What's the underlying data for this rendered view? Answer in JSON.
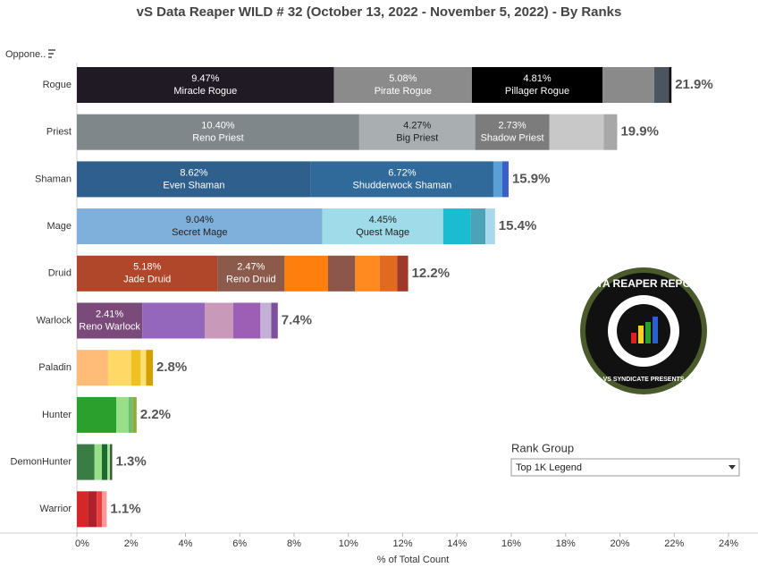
{
  "chart_data": {
    "type": "bar",
    "title": "vS Data Reaper WILD # 32 (October 13, 2022 - November 5, 2022) - By Ranks",
    "filter_label": "Oppone..",
    "xlabel": "% of Total Count",
    "orientation": "horizontal",
    "stacked": true,
    "grid": false,
    "xlim": [
      0,
      24
    ],
    "xticks": [
      {
        "value": 0,
        "label": "0%"
      },
      {
        "value": 2,
        "label": "2%"
      },
      {
        "value": 4,
        "label": "4%"
      },
      {
        "value": 6,
        "label": "6%"
      },
      {
        "value": 8,
        "label": "8%"
      },
      {
        "value": 10,
        "label": "10%"
      },
      {
        "value": 12,
        "label": "12%"
      },
      {
        "value": 14,
        "label": "14%"
      },
      {
        "value": 16,
        "label": "16%"
      },
      {
        "value": 18,
        "label": "18%"
      },
      {
        "value": 20,
        "label": "20%"
      },
      {
        "value": 22,
        "label": "22%"
      },
      {
        "value": 24,
        "label": "24%"
      }
    ],
    "rows": [
      {
        "category": "Rogue",
        "total": 21.9,
        "total_label": "21.9%",
        "segments": [
          {
            "name": "Miracle Rogue",
            "value": 9.47,
            "value_label": "9.47%",
            "color": "#1f1a24"
          },
          {
            "name": "Pirate Rogue",
            "value": 5.08,
            "value_label": "5.08%",
            "color": "#8b8b8b"
          },
          {
            "name": "Pillager Rogue",
            "value": 4.81,
            "value_label": "4.81%",
            "color": "#000000"
          },
          {
            "value": 1.9,
            "color": "#8a8a8a"
          },
          {
            "value": 0.55,
            "color": "#4a5560"
          },
          {
            "value": 0.09,
            "color": "#111111"
          }
        ]
      },
      {
        "category": "Priest",
        "total": 19.9,
        "total_label": "19.9%",
        "segments": [
          {
            "name": "Reno Priest",
            "value": 10.4,
            "value_label": "10.40%",
            "color": "#7f878b"
          },
          {
            "name": "Big Priest",
            "value": 4.27,
            "value_label": "4.27%",
            "color": "#a9aeb0"
          },
          {
            "name": "Shadow Priest",
            "value": 2.73,
            "value_label": "2.73%",
            "color": "#7c7c7c"
          },
          {
            "value": 2.0,
            "color": "#c8c8c8"
          },
          {
            "value": 0.5,
            "color": "#a8a8a8"
          }
        ]
      },
      {
        "category": "Shaman",
        "total": 15.9,
        "total_label": "15.9%",
        "segments": [
          {
            "name": "Even Shaman",
            "value": 8.62,
            "value_label": "8.62%",
            "color": "#2e5f8d"
          },
          {
            "name": "Shudderwock Shaman",
            "value": 6.72,
            "value_label": "6.72%",
            "color": "#2f6a9a"
          },
          {
            "value": 0.33,
            "color": "#5aa0d6"
          },
          {
            "value": 0.23,
            "color": "#3a5fc9"
          }
        ]
      },
      {
        "category": "Mage",
        "total": 15.4,
        "total_label": "15.4%",
        "segments": [
          {
            "name": "Secret Mage",
            "value": 9.04,
            "value_label": "9.04%",
            "color": "#7fb0dc"
          },
          {
            "name": "Quest Mage",
            "value": 4.45,
            "value_label": "4.45%",
            "color": "#9fdbe8"
          },
          {
            "value": 1.0,
            "color": "#1bbcd0"
          },
          {
            "value": 0.56,
            "color": "#4aa3b8"
          },
          {
            "value": 0.35,
            "color": "#a8d8ec"
          }
        ]
      },
      {
        "category": "Druid",
        "total": 12.2,
        "total_label": "12.2%",
        "segments": [
          {
            "name": "Jade Druid",
            "value": 5.18,
            "value_label": "5.18%",
            "color": "#b0472a"
          },
          {
            "name": "Reno Druid",
            "value": 2.47,
            "value_label": "2.47%",
            "color": "#8b5a4a"
          },
          {
            "value": 1.6,
            "color": "#ff7f0e"
          },
          {
            "value": 1.0,
            "color": "#8c564b"
          },
          {
            "value": 0.9,
            "color": "#ff8a1f"
          },
          {
            "value": 0.65,
            "color": "#e06a20"
          },
          {
            "value": 0.4,
            "color": "#9e3a2a"
          }
        ]
      },
      {
        "category": "Warlock",
        "total": 7.4,
        "total_label": "7.4%",
        "segments": [
          {
            "name": "Reno Warlock",
            "value": 2.41,
            "value_label": "2.41%",
            "color": "#7a4a7a"
          },
          {
            "value": 2.3,
            "color": "#9467bd"
          },
          {
            "value": 1.05,
            "color": "#c899b8"
          },
          {
            "value": 1.0,
            "color": "#9d5fb5"
          },
          {
            "value": 0.4,
            "color": "#c5b0d5"
          },
          {
            "value": 0.24,
            "color": "#7e4e9e"
          }
        ]
      },
      {
        "category": "Paladin",
        "total": 2.8,
        "total_label": "2.8%",
        "segments": [
          {
            "value": 1.15,
            "color": "#ffbb78"
          },
          {
            "value": 0.85,
            "color": "#ffd866"
          },
          {
            "value": 0.35,
            "color": "#f0c020"
          },
          {
            "value": 0.2,
            "color": "#ffe070"
          },
          {
            "value": 0.25,
            "color": "#d4a000"
          }
        ]
      },
      {
        "category": "Hunter",
        "total": 2.2,
        "total_label": "2.2%",
        "segments": [
          {
            "value": 1.45,
            "color": "#2ca02c"
          },
          {
            "value": 0.45,
            "color": "#98df8a"
          },
          {
            "value": 0.15,
            "color": "#6cc06c"
          },
          {
            "value": 0.15,
            "color": "#8cac3c"
          }
        ]
      },
      {
        "category": "DemonHunter",
        "total": 1.3,
        "total_label": "1.3%",
        "segments": [
          {
            "value": 0.65,
            "color": "#3a7d44"
          },
          {
            "value": 0.27,
            "color": "#98df8a"
          },
          {
            "value": 0.2,
            "color": "#1d6a30"
          },
          {
            "value": 0.1,
            "color": "#a6e0a0"
          },
          {
            "value": 0.08,
            "color": "#2d5d30"
          }
        ]
      },
      {
        "category": "Warrior",
        "total": 1.1,
        "total_label": "1.1%",
        "segments": [
          {
            "value": 0.4,
            "color": "#d62728"
          },
          {
            "value": 0.33,
            "color": "#b0202a"
          },
          {
            "value": 0.2,
            "color": "#e84040"
          },
          {
            "value": 0.17,
            "color": "#ff9896"
          }
        ]
      }
    ],
    "rank_group": {
      "title": "Rank Group",
      "selected": "Top 1K Legend"
    },
    "logo": {
      "title": "DATA REAPER REPORT",
      "subtitle": "VS SYNDICATE PRESENTS"
    }
  }
}
